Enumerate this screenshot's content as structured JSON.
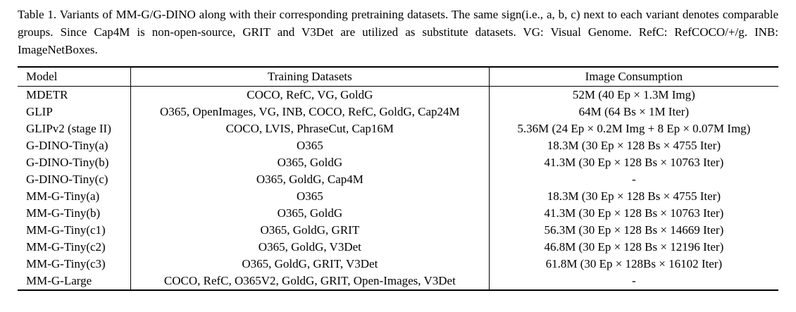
{
  "caption": "Table 1. Variants of MM-G/G-DINO along with their corresponding pretraining datasets. The same sign(i.e., a, b, c) next to each variant denotes comparable groups. Since Cap4M is non-open-source, GRIT and V3Det are utilized as substitute datasets. VG: Visual Genome. RefC: RefCOCO/+/g. INB: ImageNetBoxes.",
  "table": {
    "headers": {
      "model": "Model",
      "datasets": "Training Datasets",
      "consumption": "Image Consumption"
    },
    "rows": [
      {
        "model": "MDETR",
        "datasets": "COCO, RefC, VG, GoldG",
        "consumption": "52M (40 Ep × 1.3M Img)"
      },
      {
        "model": "GLIP",
        "datasets": "O365, OpenImages, VG, INB, COCO, RefC, GoldG, Cap24M",
        "consumption": "64M (64 Bs × 1M Iter)"
      },
      {
        "model": "GLIPv2 (stage II)",
        "datasets": "COCO, LVIS, PhraseCut, Cap16M",
        "consumption": "5.36M (24 Ep × 0.2M Img + 8 Ep × 0.07M Img)"
      },
      {
        "model": "G-DINO-Tiny(a)",
        "datasets": "O365",
        "consumption": "18.3M (30 Ep × 128 Bs × 4755 Iter)"
      },
      {
        "model": "G-DINO-Tiny(b)",
        "datasets": "O365, GoldG",
        "consumption": "41.3M (30 Ep × 128 Bs × 10763 Iter)"
      },
      {
        "model": "G-DINO-Tiny(c)",
        "datasets": "O365, GoldG, Cap4M",
        "consumption": "-"
      },
      {
        "model": "MM-G-Tiny(a)",
        "datasets": "O365",
        "consumption": "18.3M (30 Ep × 128 Bs × 4755 Iter)"
      },
      {
        "model": "MM-G-Tiny(b)",
        "datasets": "O365, GoldG",
        "consumption": "41.3M (30 Ep × 128 Bs × 10763 Iter)"
      },
      {
        "model": "MM-G-Tiny(c1)",
        "datasets": "O365, GoldG, GRIT",
        "consumption": "56.3M (30 Ep × 128 Bs × 14669 Iter)"
      },
      {
        "model": "MM-G-Tiny(c2)",
        "datasets": "O365, GoldG, V3Det",
        "consumption": "46.8M (30 Ep × 128 Bs × 12196 Iter)"
      },
      {
        "model": "MM-G-Tiny(c3)",
        "datasets": "O365, GoldG, GRIT, V3Det",
        "consumption": "61.8M (30 Ep × 128Bs × 16102 Iter)"
      },
      {
        "model": "MM-G-Large",
        "datasets": "COCO, RefC, O365V2, GoldG, GRIT, Open-Images, V3Det",
        "consumption": "-"
      }
    ]
  }
}
